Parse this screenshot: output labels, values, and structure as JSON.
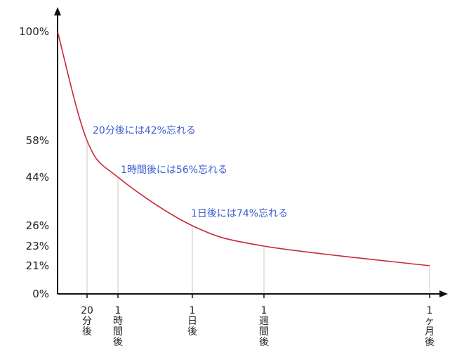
{
  "colors": {
    "curve": "#c8283a",
    "annotation": "#3a5bd0",
    "axis": "#111111",
    "guide": "#c8c8c8"
  },
  "chart_data": {
    "type": "line",
    "title": "",
    "xlabel": "",
    "ylabel": "",
    "ylim": [
      0,
      100
    ],
    "y_tick_labels": [
      "100%",
      "58%",
      "44%",
      "26%",
      "23%",
      "21%",
      "0%"
    ],
    "y_ticks": [
      100,
      58,
      44,
      26,
      23,
      21,
      0
    ],
    "x_scale": "log (elapsed time)",
    "x_tick_labels": [
      "20分後",
      "1時間後",
      "1日後",
      "1週間後",
      "1ヶ月後"
    ],
    "points": [
      {
        "label": "",
        "value": 100
      },
      {
        "label": "20分後",
        "value": 58
      },
      {
        "label": "1時間後",
        "value": 44
      },
      {
        "label": "1日後",
        "value": 26
      },
      {
        "label": "1週間後",
        "value": 23
      },
      {
        "label": "1ヶ月後",
        "value": 21
      }
    ],
    "annotations": [
      {
        "text": "20分後には42%忘れる",
        "at": "20分後"
      },
      {
        "text": "1時間後には56%忘れる",
        "at": "1時間後"
      },
      {
        "text": "1日後には74%忘れる",
        "at": "1日後"
      }
    ],
    "grid": false
  }
}
